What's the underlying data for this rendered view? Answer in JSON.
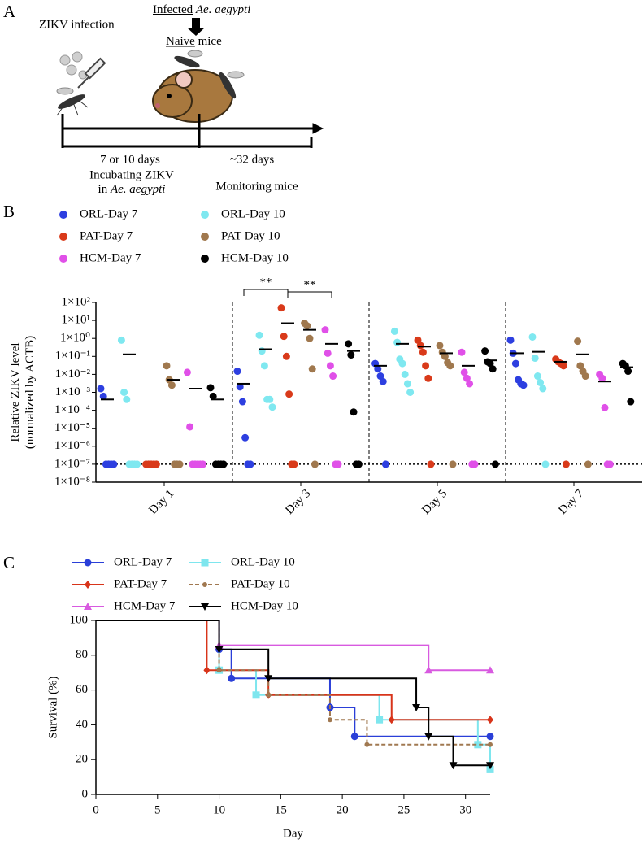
{
  "panel_a": {
    "label": "A",
    "zikv_infection": "ZIKV infection",
    "transfer": {
      "infected": "Infected",
      "species": "Ae. aegypti"
    },
    "recipient": {
      "naive": "Naive",
      "mice": "mice"
    },
    "incubation_time": "7 or 10 days",
    "monitoring_time": "~32 days",
    "incubation": {
      "line1": "Incubating ZIKV",
      "prefix": "in",
      "species": "Ae. aegypti"
    },
    "monitoring": "Monitoring mice"
  },
  "chart_data": [
    {
      "type": "dot",
      "panel_label": "B",
      "y_label": [
        "Relative ZIKV level",
        "(normalized by ACTB)"
      ],
      "categories": [
        "Day 1",
        "Day 3",
        "Day 5",
        "Day 7"
      ],
      "log_scale": true,
      "ylim": [
        1e-08,
        100
      ],
      "yticks": [
        {
          "value": 100,
          "label": "1×10²"
        },
        {
          "value": 10,
          "label": "1×10¹"
        },
        {
          "value": 1,
          "label": "1×10⁰"
        },
        {
          "value": 0.1,
          "label": "1×10⁻¹"
        },
        {
          "value": 0.01,
          "label": "1×10⁻²"
        },
        {
          "value": 0.001,
          "label": "1×10⁻³"
        },
        {
          "value": 0.0001,
          "label": "1×10⁻⁴"
        },
        {
          "value": 1e-05,
          "label": "1×10⁻⁵"
        },
        {
          "value": 1e-06,
          "label": "1×10⁻⁶"
        },
        {
          "value": 1e-07,
          "label": "1×10⁻⁷"
        },
        {
          "value": 1e-08,
          "label": "1×10⁻⁸"
        }
      ],
      "limit_line": 1e-07,
      "annotations": [
        "**",
        "**"
      ],
      "series": [
        {
          "name": "ORL-Day 7",
          "color": "#2d3fe0",
          "values": [
            [
              0.0016,
              0.0006,
              1e-07,
              1e-07,
              1e-07,
              1e-07
            ],
            [
              0.015,
              0.002,
              0.0003,
              3e-06,
              1e-07,
              1e-07
            ],
            [
              0.04,
              0.02,
              0.008,
              0.004,
              1e-07
            ],
            [
              0.8,
              0.15,
              0.04,
              0.005,
              0.003,
              0.0025
            ]
          ],
          "means": [
            0.0004,
            0.003,
            0.03,
            0.15
          ]
        },
        {
          "name": "ORL-Day 10",
          "color": "#7fe8f0",
          "values": [
            [
              0.8,
              0.001,
              0.0004,
              1e-07,
              1e-07,
              1e-07,
              1e-07
            ],
            [
              1.5,
              0.2,
              0.03,
              0.0004,
              0.0004,
              0.00015
            ],
            [
              2.5,
              0.6,
              0.07,
              0.04,
              0.01,
              0.003,
              0.001
            ],
            [
              1.2,
              0.08,
              0.008,
              0.0035,
              0.0016,
              1e-07
            ]
          ],
          "means": [
            0.13,
            0.25,
            0.5,
            0.18
          ]
        },
        {
          "name": "PAT-Day 7",
          "color": "#d93a1a",
          "values": [
            [
              1e-07,
              1e-07,
              1e-07,
              1e-07,
              1e-07
            ],
            [
              50,
              1.3,
              0.1,
              0.0008,
              1e-07,
              1e-07
            ],
            [
              0.8,
              0.4,
              0.17,
              0.03,
              0.006,
              1e-07
            ],
            [
              0.07,
              0.05,
              0.04,
              0.03,
              1e-07
            ]
          ],
          "means": [
            null,
            7,
            0.35,
            0.05
          ]
        },
        {
          "name": "PAT Day 10",
          "color": "#a0784e",
          "values": [
            [
              0.03,
              0.005,
              0.0025,
              1e-07,
              1e-07,
              1e-07
            ],
            [
              7,
              5,
              1,
              0.02,
              1e-07
            ],
            [
              0.4,
              0.17,
              0.1,
              0.045,
              0.03,
              1e-07
            ],
            [
              0.7,
              0.03,
              0.015,
              0.008,
              1e-07
            ]
          ],
          "means": [
            0.005,
            3,
            0.15,
            0.13
          ]
        },
        {
          "name": "HCM-Day 7",
          "color": "#e050e8",
          "values": [
            [
              0.013,
              1.2e-05,
              1e-07,
              1e-07,
              1e-07,
              1e-07,
              1e-07
            ],
            [
              3,
              0.15,
              0.03,
              0.008,
              1e-07,
              1e-07
            ],
            [
              0.17,
              0.013,
              0.006,
              0.003,
              1e-07,
              1e-07
            ],
            [
              0.01,
              0.006,
              0.00014,
              1e-07,
              1e-07
            ]
          ],
          "means": [
            0.0016,
            0.5,
            0.03,
            0.004
          ]
        },
        {
          "name": "HCM-Day 10",
          "color": "#000000",
          "values": [
            [
              0.0018,
              0.0006,
              1e-07,
              1e-07,
              1e-07,
              1e-07
            ],
            [
              0.5,
              0.12,
              8e-05,
              1e-07,
              1e-07
            ],
            [
              0.2,
              0.05,
              0.04,
              0.02,
              1e-07
            ],
            [
              0.04,
              0.03,
              0.015,
              0.0003
            ]
          ],
          "means": [
            0.0004,
            0.2,
            0.06,
            0.025
          ]
        }
      ]
    },
    {
      "type": "survival",
      "panel_label": "C",
      "x_label": "Day",
      "y_label": "Survival (%)",
      "xlim": [
        0,
        32
      ],
      "xticks": [
        0,
        5,
        10,
        15,
        20,
        25,
        30
      ],
      "ylim": [
        0,
        100
      ],
      "yticks": [
        0,
        20,
        40,
        60,
        80,
        100
      ],
      "series": [
        {
          "name": "ORL-Day 7",
          "color": "#2a3fd8",
          "marker": "circle",
          "line_style": "solid",
          "x": [
            0,
            10,
            11,
            19,
            21,
            32
          ],
          "y": [
            100,
            83.3,
            66.7,
            50,
            33.3,
            33.3
          ]
        },
        {
          "name": "ORL-Day 10",
          "color": "#7ee6ee",
          "marker": "square",
          "line_style": "solid",
          "x": [
            0,
            10,
            13,
            23,
            31,
            32
          ],
          "y": [
            100,
            71.4,
            57.1,
            42.9,
            28.6,
            14.3
          ]
        },
        {
          "name": "PAT-Day 7",
          "color": "#d8341a",
          "marker": "diamond",
          "line_style": "solid",
          "x": [
            0,
            9,
            14,
            24,
            32
          ],
          "y": [
            100,
            71.4,
            57.1,
            42.9,
            42.9
          ]
        },
        {
          "name": "PAT-Day 10",
          "color": "#a07850",
          "marker": "small-circle",
          "line_style": "dashed",
          "x": [
            0,
            10,
            14,
            19,
            22,
            32
          ],
          "y": [
            100,
            71.4,
            57.1,
            42.9,
            28.6,
            28.6
          ]
        },
        {
          "name": "HCM-Day 7",
          "color": "#d85ae0",
          "marker": "triangle-up",
          "line_style": "solid",
          "x": [
            0,
            10,
            27,
            32
          ],
          "y": [
            100,
            85.7,
            71.4,
            71.4
          ]
        },
        {
          "name": "HCM-Day 10",
          "color": "#000000",
          "marker": "triangle-down",
          "line_style": "solid",
          "x": [
            0,
            10,
            14,
            26,
            27,
            29,
            32
          ],
          "y": [
            100,
            83.3,
            66.7,
            50,
            33.3,
            16.7,
            16.7
          ]
        }
      ]
    }
  ]
}
